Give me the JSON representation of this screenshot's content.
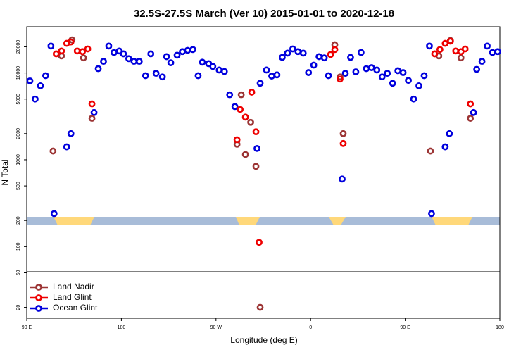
{
  "chart_data": {
    "type": "scatter",
    "title": "32.5S-27.5S March (Ver 10)   2015-01-01 to 2020-12-18",
    "xlabel": "Longitude (deg E)",
    "ylabel": "N Total",
    "log_y": true,
    "legend": "lower left",
    "xlim": [
      90,
      540
    ],
    "xticks": [
      {
        "value": 90,
        "label": "90 E"
      },
      180,
      {
        "value": 270,
        "label": "90 W"
      },
      {
        "value": 360,
        "label": "0"
      },
      {
        "value": 450,
        "label": "90 E"
      },
      {
        "value": 540,
        "label": "180"
      }
    ],
    "ylim": [
      15,
      34000
    ],
    "yticks": [
      20,
      50,
      100,
      200,
      500,
      1000,
      2000,
      5000,
      10000,
      20000
    ],
    "series": [
      {
        "name": "Ocean Glint",
        "color": "#0000dd",
        "x": [
          93,
          98,
          103,
          108,
          113,
          116,
          128,
          132,
          154,
          158,
          163,
          168,
          173,
          178,
          182,
          187,
          192,
          197,
          203,
          208,
          213,
          219,
          223,
          227,
          233,
          238,
          243,
          248,
          253,
          257,
          263,
          267,
          273,
          278,
          283,
          288,
          309,
          312,
          318,
          323,
          328,
          333,
          338,
          343,
          348,
          353,
          358,
          363,
          368,
          373,
          377,
          390,
          393,
          398,
          403,
          408,
          413,
          418,
          423,
          428,
          433,
          438,
          443,
          448,
          453,
          458,
          463,
          468,
          473,
          475,
          488,
          492,
          515,
          518,
          523,
          528,
          533,
          538
        ],
        "values": [
          8100,
          5000,
          7100,
          9300,
          20400,
          240,
          1410,
          2000,
          3500,
          11200,
          13600,
          20400,
          17200,
          17900,
          16600,
          14600,
          13600,
          13600,
          9300,
          16600,
          9900,
          9000,
          15400,
          13100,
          16000,
          17600,
          18200,
          18600,
          9300,
          13300,
          12800,
          11900,
          10800,
          10400,
          5600,
          4100,
          1350,
          7600,
          10800,
          9200,
          9500,
          15100,
          16900,
          18900,
          17600,
          16900,
          10100,
          12300,
          15400,
          14900,
          9300,
          600,
          9900,
          15100,
          10300,
          17200,
          11200,
          11500,
          10800,
          9000,
          9900,
          7600,
          10600,
          10100,
          8200,
          5000,
          7100,
          9300,
          20400,
          240,
          1410,
          2000,
          3500,
          11000,
          13600,
          20400,
          17200,
          17600
        ]
      },
      {
        "name": "Land Nadir",
        "color": "#9c3535",
        "x": [
          115,
          123,
          133,
          144,
          152,
          290,
          294,
          298,
          303,
          308,
          312,
          383,
          388,
          391,
          474,
          482,
          493,
          503,
          512
        ],
        "values": [
          1260,
          15700,
          24000,
          14900,
          3000,
          1510,
          5600,
          1150,
          2700,
          840,
          20,
          21100,
          9000,
          2000,
          1260,
          15700,
          23600,
          14900,
          3000
        ]
      },
      {
        "name": "Land Glint",
        "color": "#ee0000",
        "x": [
          118,
          123,
          128,
          132,
          138,
          143,
          148,
          152,
          290,
          293,
          298,
          304,
          308,
          311,
          379,
          383,
          388,
          391,
          478,
          483,
          488,
          493,
          498,
          503,
          507,
          512
        ],
        "values": [
          16600,
          17900,
          21900,
          22700,
          17900,
          17600,
          18900,
          4400,
          1700,
          3800,
          3100,
          6000,
          2100,
          112,
          16300,
          18600,
          8500,
          1540,
          16600,
          18600,
          21900,
          23200,
          17900,
          17600,
          18900,
          4400
        ]
      }
    ]
  }
}
